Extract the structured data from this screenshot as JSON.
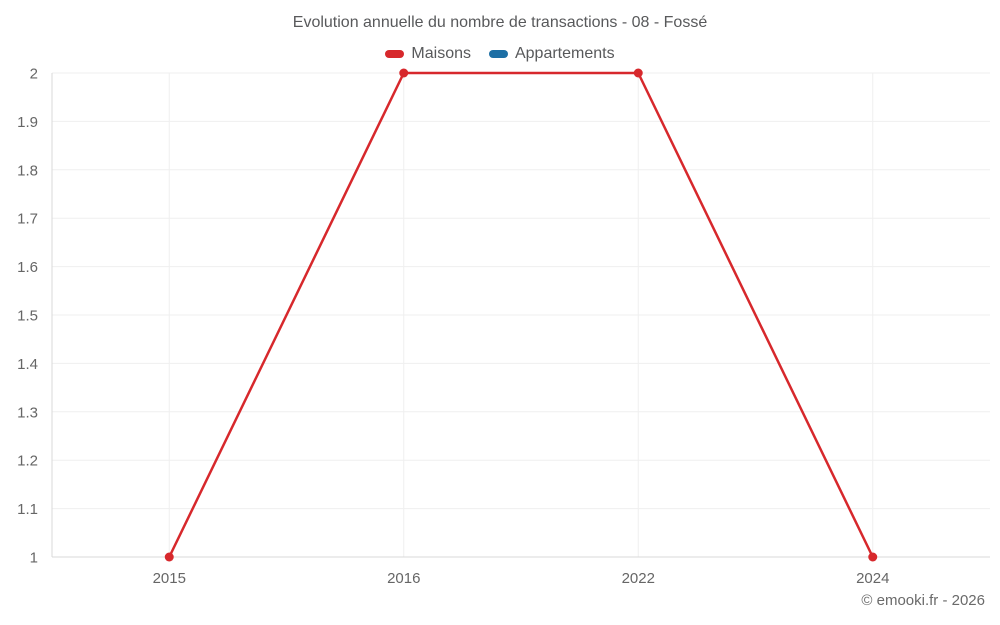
{
  "chart_data": {
    "type": "line",
    "title": "Evolution annuelle du nombre de transactions - 08 - Fossé",
    "categories": [
      "2015",
      "2016",
      "2022",
      "2024"
    ],
    "series": [
      {
        "name": "Maisons",
        "color": "#d7282c",
        "values": [
          1,
          2,
          2,
          1
        ]
      },
      {
        "name": "Appartements",
        "color": "#1d6fa5",
        "values": []
      }
    ],
    "ylim": [
      1,
      2
    ],
    "y_ticks": [
      "1",
      "1.1",
      "1.2",
      "1.3",
      "1.4",
      "1.5",
      "1.6",
      "1.7",
      "1.8",
      "1.9",
      "2"
    ],
    "grid": true,
    "legend_position": "top",
    "copyright": "© emooki.fr - 2026"
  },
  "colors": {
    "background": "#ffffff",
    "gridline": "#efefef",
    "axis_line": "#d9d9d9",
    "title_text": "#58595b",
    "tick_text": "#666666",
    "copyright_text": "#6a6a6a"
  }
}
